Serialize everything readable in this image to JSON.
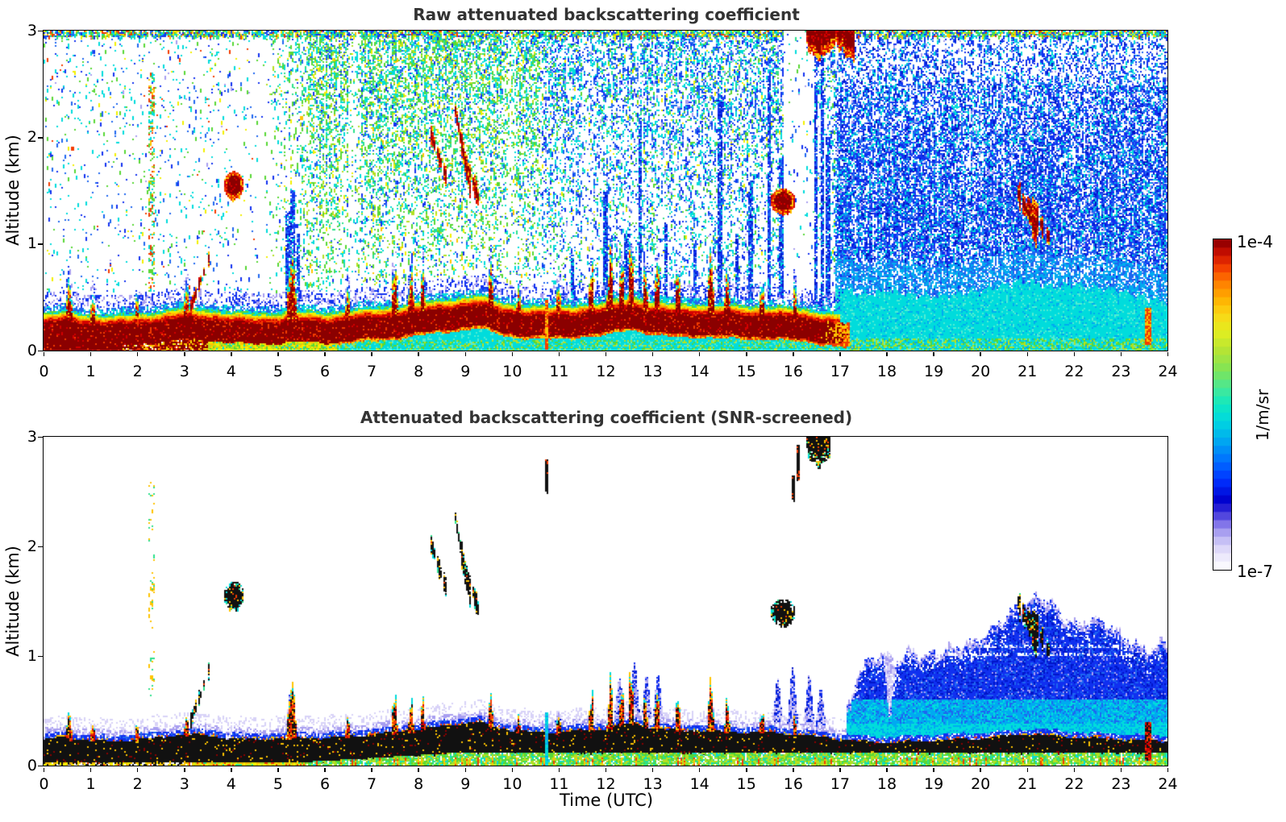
{
  "figure": {
    "background": "#ffffff"
  },
  "colorbar": {
    "max_label": "1e-4",
    "min_label": "1e-7",
    "unit": "1/m/sr",
    "scale": "log",
    "min": 1e-07,
    "max": 0.0001,
    "n_steps": 40,
    "stops": [
      [
        0.0,
        "#ffffff"
      ],
      [
        0.035,
        "#efecfc"
      ],
      [
        0.07,
        "#d8d3f8"
      ],
      [
        0.105,
        "#b3abf2"
      ],
      [
        0.14,
        "#7e71e8"
      ],
      [
        0.175,
        "#3a2fd8"
      ],
      [
        0.21,
        "#0000cd"
      ],
      [
        0.27,
        "#0030ff"
      ],
      [
        0.33,
        "#0070ff"
      ],
      [
        0.39,
        "#00a8f0"
      ],
      [
        0.45,
        "#00d8e0"
      ],
      [
        0.5,
        "#10e8c0"
      ],
      [
        0.55,
        "#48e896"
      ],
      [
        0.6,
        "#7ce45a"
      ],
      [
        0.66,
        "#b2e436"
      ],
      [
        0.72,
        "#e2ee20"
      ],
      [
        0.77,
        "#fad816"
      ],
      [
        0.82,
        "#ffb000"
      ],
      [
        0.87,
        "#ff7c00"
      ],
      [
        0.91,
        "#f54400"
      ],
      [
        0.95,
        "#d21500"
      ],
      [
        0.98,
        "#a80000"
      ],
      [
        1.0,
        "#7f0000"
      ]
    ]
  },
  "palette": {
    "darkred": "#8b0000",
    "red": "#d40000",
    "orangered": "#f33c00",
    "orange": "#ff8c00",
    "amber": "#ffc400",
    "yellow": "#f2f000",
    "yellowgreen": "#b4e022",
    "green": "#58d835",
    "springgreen": "#2ce08c",
    "cyan": "#00dcdc",
    "lightcyan": "#52ecd2",
    "skyblue": "#00aaf0",
    "dodger": "#1e66f0",
    "blue": "#1030f0",
    "mediumblue": "#0016c8",
    "navy": "#0000a0",
    "lavender": "#a89ef0",
    "paleLavender": "#d8d2f8",
    "black": "#111111",
    "white": "#ffffff"
  },
  "chart_data": [
    {
      "type": "heatmap",
      "title": "Raw attenuated backscattering coefficient",
      "xlabel": "",
      "ylabel": "Altitude (km)",
      "x_range": [
        0,
        24
      ],
      "y_range": [
        0,
        3
      ],
      "x_ticks": [
        0,
        1,
        2,
        3,
        4,
        5,
        6,
        7,
        8,
        9,
        10,
        11,
        12,
        13,
        14,
        15,
        16,
        17,
        18,
        19,
        20,
        21,
        22,
        23,
        24
      ],
      "y_ticks": [
        0,
        1,
        2,
        3
      ],
      "value_scale": "log",
      "value_min": 1e-07,
      "value_max": 0.0001,
      "value_unit": "1/m/sr",
      "description": "Lidar raw attenuated backscatter vs time (UTC hours) and altitude (km). Strong dark-red aerosol layer below ~0.4 km all day until ~17 UTC, cyan low layer after 17 UTC, speckled noise aloft (green-cyan 5-17 UTC, dense blue 17-24 UTC), scattered red cloud echoes.",
      "features": {
        "surface_layer_top_km": [
          [
            0,
            0.26
          ],
          [
            0.5,
            0.28
          ],
          [
            1,
            0.25
          ],
          [
            1.5,
            0.24
          ],
          [
            2,
            0.26
          ],
          [
            2.5,
            0.28
          ],
          [
            3,
            0.31
          ],
          [
            3.5,
            0.3
          ],
          [
            4,
            0.27
          ],
          [
            4.5,
            0.26
          ],
          [
            5,
            0.27
          ],
          [
            5.5,
            0.28
          ],
          [
            6,
            0.27
          ],
          [
            6.5,
            0.29
          ],
          [
            7,
            0.31
          ],
          [
            7.5,
            0.33
          ],
          [
            8,
            0.36
          ],
          [
            8.5,
            0.39
          ],
          [
            9,
            0.42
          ],
          [
            9.3,
            0.43
          ],
          [
            9.7,
            0.38
          ],
          [
            10,
            0.35
          ],
          [
            10.5,
            0.33
          ],
          [
            11,
            0.33
          ],
          [
            11.5,
            0.35
          ],
          [
            12,
            0.36
          ],
          [
            12.3,
            0.4
          ],
          [
            12.6,
            0.42
          ],
          [
            13,
            0.37
          ],
          [
            13.5,
            0.35
          ],
          [
            14,
            0.35
          ],
          [
            14.5,
            0.34
          ],
          [
            15,
            0.33
          ],
          [
            15.5,
            0.33
          ],
          [
            16,
            0.31
          ],
          [
            16.5,
            0.29
          ],
          [
            17,
            0.26
          ],
          [
            17.5,
            0.24
          ],
          [
            18,
            0.23
          ],
          [
            18.5,
            0.24
          ],
          [
            19,
            0.25
          ],
          [
            19.5,
            0.26
          ],
          [
            20,
            0.27
          ],
          [
            20.5,
            0.29
          ],
          [
            21,
            0.31
          ],
          [
            21.5,
            0.3
          ],
          [
            22,
            0.28
          ],
          [
            22.5,
            0.27
          ],
          [
            23,
            0.26
          ],
          [
            23.5,
            0.25
          ],
          [
            24,
            0.24
          ]
        ],
        "surface_layer_thickness_km": 0.2,
        "spikes": [
          [
            0.55,
            0.3,
            0.06
          ],
          [
            1.05,
            0.18,
            0.05
          ],
          [
            2.0,
            0.12,
            0.05
          ],
          [
            3.05,
            0.22,
            0.05
          ],
          [
            5.3,
            0.42,
            0.12
          ],
          [
            6.5,
            0.15,
            0.06
          ],
          [
            7.5,
            0.3,
            0.07
          ],
          [
            7.85,
            0.25,
            0.06
          ],
          [
            8.1,
            0.22,
            0.05
          ],
          [
            9.55,
            0.28,
            0.06
          ],
          [
            10.15,
            0.12,
            0.05
          ],
          [
            11.0,
            0.15,
            0.05
          ],
          [
            11.7,
            0.35,
            0.06
          ],
          [
            12.1,
            0.42,
            0.07
          ],
          [
            12.35,
            0.38,
            0.06
          ],
          [
            12.55,
            0.45,
            0.07
          ],
          [
            12.85,
            0.3,
            0.06
          ],
          [
            13.1,
            0.4,
            0.06
          ],
          [
            13.55,
            0.28,
            0.06
          ],
          [
            14.25,
            0.38,
            0.07
          ],
          [
            14.6,
            0.25,
            0.06
          ],
          [
            15.35,
            0.22,
            0.06
          ],
          [
            16.05,
            0.18,
            0.05
          ]
        ],
        "clouds": [
          {
            "kind": "diag",
            "t0": 3.12,
            "t1": 3.58,
            "a0": 0.38,
            "a1": 0.92,
            "th": 0.06
          },
          {
            "kind": "blob",
            "t0": 3.85,
            "t1": 4.28,
            "a0": 1.42,
            "a1": 1.68
          },
          {
            "kind": "wisp",
            "t0": 2.24,
            "t1": 2.36,
            "a0": 0.55,
            "a1": 2.6
          },
          {
            "kind": "diag",
            "t0": 8.28,
            "t1": 8.62,
            "a0": 2.02,
            "a1": 1.6,
            "th": 0.07
          },
          {
            "kind": "diag",
            "t0": 8.78,
            "t1": 9.15,
            "a0": 2.3,
            "a1": 1.42,
            "th": 0.08
          },
          {
            "kind": "diag",
            "t0": 9.02,
            "t1": 9.34,
            "a0": 1.78,
            "a1": 1.36,
            "th": 0.07
          },
          {
            "kind": "blob",
            "t0": 15.52,
            "t1": 16.06,
            "a0": 1.28,
            "a1": 1.52
          },
          {
            "kind": "topblob",
            "t0": 16.28,
            "t1": 17.32,
            "a0": 2.7,
            "a1": 3.0
          },
          {
            "kind": "diag",
            "t0": 20.78,
            "t1": 21.22,
            "a0": 1.5,
            "a1": 1.12,
            "th": 0.11
          },
          {
            "kind": "diag",
            "t0": 21.02,
            "t1": 21.52,
            "a0": 1.38,
            "a1": 1.02,
            "th": 0.1
          },
          {
            "kind": "column",
            "t0": 10.7,
            "t1": 10.79,
            "a0": 0.0,
            "a1": 0.48,
            "p2": "cyan"
          },
          {
            "kind": "column",
            "t0": 23.52,
            "t1": 23.66,
            "a0": 0.05,
            "a1": 0.4
          }
        ],
        "streak_columns": [
          [
            5.22,
            0.3,
            1.3
          ],
          [
            5.32,
            0.3,
            1.5
          ],
          [
            5.45,
            0.3,
            1.1
          ],
          [
            11.3,
            0.4,
            0.9
          ],
          [
            12.0,
            0.45,
            1.5
          ],
          [
            12.45,
            0.4,
            1.1
          ],
          [
            12.75,
            0.4,
            2.2
          ],
          [
            13.3,
            0.45,
            1.2
          ],
          [
            13.9,
            0.4,
            1.0
          ],
          [
            14.45,
            0.45,
            2.4
          ],
          [
            14.8,
            0.4,
            1.1
          ],
          [
            15.1,
            0.45,
            1.6
          ],
          [
            15.5,
            0.4,
            2.6
          ],
          [
            15.75,
            0.5,
            1.8
          ],
          [
            16.5,
            0.3,
            3.0
          ],
          [
            16.62,
            0.2,
            3.0
          ],
          [
            16.75,
            0.3,
            2.0
          ],
          [
            18.05,
            0.3,
            1.35
          ]
        ],
        "white_gaps": [
          [
            15.82,
            16.45,
            0.1
          ],
          [
            16.45,
            16.72,
            0.5
          ],
          [
            6.52,
            6.8,
            0.5
          ],
          [
            11.5,
            11.75,
            0.55
          ],
          [
            9.82,
            10.08,
            0.6
          ],
          [
            4.05,
            4.5,
            0.6
          ]
        ],
        "low_level_cyan_top_km": [
          [
            16.9,
            0.6
          ],
          [
            17.5,
            0.52
          ],
          [
            18,
            0.56
          ],
          [
            19,
            0.5
          ],
          [
            20,
            0.56
          ],
          [
            21,
            0.66
          ],
          [
            21.5,
            0.6
          ],
          [
            22,
            0.62
          ],
          [
            23,
            0.56
          ],
          [
            23.5,
            0.5
          ],
          [
            24,
            0.46
          ]
        ]
      }
    },
    {
      "type": "heatmap",
      "title": "Attenuated backscattering coefficient (SNR-screened)",
      "xlabel": "Time (UTC)",
      "ylabel": "Altitude (km)",
      "x_range": [
        0,
        24
      ],
      "y_range": [
        0,
        3
      ],
      "x_ticks": [
        0,
        1,
        2,
        3,
        4,
        5,
        6,
        7,
        8,
        9,
        10,
        11,
        12,
        13,
        14,
        15,
        16,
        17,
        18,
        19,
        20,
        21,
        22,
        23,
        24
      ],
      "y_ticks": [
        0,
        1,
        2,
        3
      ],
      "value_scale": "log",
      "value_min": 1e-07,
      "value_max": 0.0001,
      "value_unit": "1/m/sr",
      "description": "Same field after SNR screening: white where noise was removed. Saturated aerosol layer below ~0.4 km shown black with blue/lavender halo above and green base, cloud echoes black, broad blue aerosol plume up to ~1.5 km from 17-24 UTC.",
      "features": {
        "blue_field_top_km": [
          [
            17.0,
            0.4
          ],
          [
            17.2,
            0.55
          ],
          [
            17.4,
            0.85
          ],
          [
            17.6,
            0.95
          ],
          [
            17.8,
            1.0
          ],
          [
            18.0,
            1.02
          ],
          [
            18.2,
            0.95
          ],
          [
            18.5,
            1.05
          ],
          [
            18.8,
            1.0
          ],
          [
            19.2,
            1.05
          ],
          [
            19.6,
            1.1
          ],
          [
            20,
            1.15
          ],
          [
            20.4,
            1.3
          ],
          [
            20.8,
            1.45
          ],
          [
            21.2,
            1.55
          ],
          [
            21.5,
            1.5
          ],
          [
            21.8,
            1.35
          ],
          [
            22.1,
            1.28
          ],
          [
            22.4,
            1.35
          ],
          [
            22.7,
            1.3
          ],
          [
            23,
            1.2
          ],
          [
            23.3,
            1.12
          ],
          [
            23.6,
            1.05
          ],
          [
            24,
            1.15
          ]
        ],
        "notch": [
          17.93,
          18.22,
          0.45,
          4.0
        ],
        "blue_bumps": [
          [
            5.28,
            0.42
          ],
          [
            11.0,
            0.2
          ],
          [
            12.3,
            0.42
          ],
          [
            12.62,
            0.55
          ],
          [
            12.88,
            0.48
          ],
          [
            13.12,
            0.5
          ],
          [
            14.25,
            0.3
          ],
          [
            15.68,
            0.5
          ],
          [
            16.0,
            0.62
          ],
          [
            16.35,
            0.55
          ],
          [
            16.6,
            0.45
          ]
        ],
        "black_dashes": [
          [
            10.74,
            2.5,
            2.8
          ],
          [
            16.02,
            2.42,
            2.64
          ],
          [
            16.12,
            2.6,
            2.92
          ]
        ]
      }
    }
  ]
}
